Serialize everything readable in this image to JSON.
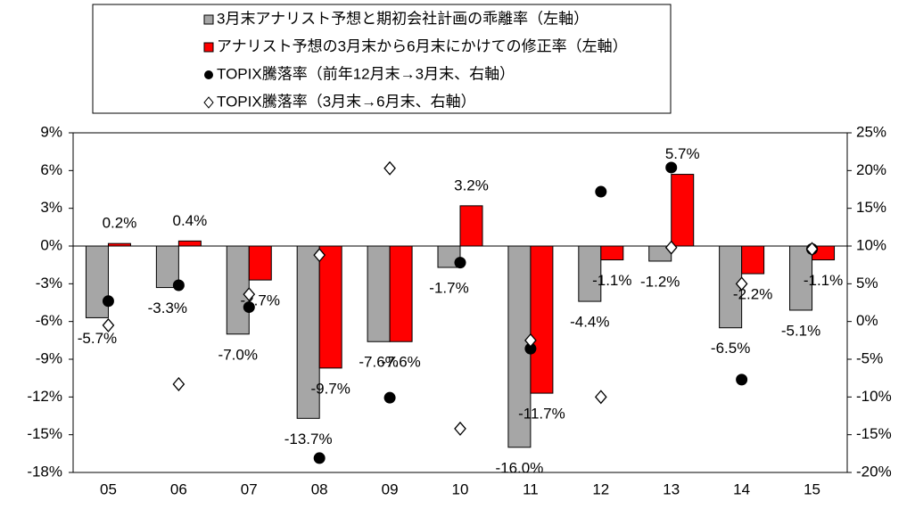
{
  "chart_data": {
    "type": "bar",
    "categories": [
      "05",
      "06",
      "07",
      "08",
      "09",
      "10",
      "11",
      "12",
      "13",
      "14",
      "15"
    ],
    "series": [
      {
        "name": "3月末アナリスト予想と期初会社計画の乖離率（左軸）",
        "color": "#a6a6a6",
        "values": [
          -5.7,
          -3.3,
          -7.0,
          -13.7,
          -7.6,
          -1.7,
          -16.0,
          -4.4,
          -1.2,
          -6.5,
          -5.1
        ],
        "value_labels": [
          "-5.7%",
          "-3.3%",
          "-7.0%",
          "-13.7%",
          "-7.6%",
          "-1.7%",
          "-16.0%",
          "-4.4%",
          "-1.2%",
          "-6.5%",
          "-5.1%"
        ]
      },
      {
        "name": "アナリスト予想の3月末から6月末にかけての修正率（左軸）",
        "color": "#ff0000",
        "values": [
          0.2,
          0.4,
          -2.7,
          -9.7,
          -7.6,
          3.2,
          -11.7,
          -1.1,
          5.7,
          -2.2,
          -1.1
        ],
        "value_labels": [
          "0.2%",
          "0.4%",
          "-2.7%",
          "-9.7%",
          "-7.6%",
          "3.2%",
          "-11.7%",
          "-1.1%",
          "5.7%",
          "-2.2%",
          "-1.1%"
        ]
      },
      {
        "name": "TOPIX騰落率（前年12月末→3月末、右軸）",
        "color": "#000000",
        "axis": "y2",
        "values": [
          2.7,
          4.8,
          1.9,
          -18.1,
          -10.1,
          7.8,
          -3.6,
          17.2,
          20.4,
          -7.7,
          9.6
        ]
      },
      {
        "name": "TOPIX騰落率（3月末→6月末、右軸）",
        "color": "#ffffff",
        "axis": "y2",
        "values": [
          -0.5,
          -8.3,
          3.6,
          8.8,
          20.3,
          -14.2,
          -2.5,
          -10.0,
          9.8,
          5.0,
          9.6
        ]
      }
    ],
    "ylim": [
      -18,
      9
    ],
    "yticks": [
      {
        "value": -18,
        "label": "-18%"
      },
      {
        "value": -15,
        "label": "-15%"
      },
      {
        "value": -12,
        "label": "-12%"
      },
      {
        "value": -9,
        "label": "-9%"
      },
      {
        "value": -6,
        "label": "-6%"
      },
      {
        "value": -3,
        "label": "-3%"
      },
      {
        "value": 0,
        "label": "0%"
      },
      {
        "value": 3,
        "label": "3%"
      },
      {
        "value": 6,
        "label": "6%"
      },
      {
        "value": 9,
        "label": "9%"
      }
    ],
    "y2lim": [
      -20,
      25
    ],
    "y2ticks": [
      {
        "value": -20,
        "label": "-20%"
      },
      {
        "value": -15,
        "label": "-15%"
      },
      {
        "value": -10,
        "label": "-10%"
      },
      {
        "value": -5,
        "label": "-5%"
      },
      {
        "value": 0,
        "label": "0%"
      },
      {
        "value": 5,
        "label": "5%"
      },
      {
        "value": 10,
        "label": "10%"
      },
      {
        "value": 15,
        "label": "15%"
      },
      {
        "value": 20,
        "label": "20%"
      },
      {
        "value": 25,
        "label": "25%"
      }
    ],
    "legend": "top"
  }
}
